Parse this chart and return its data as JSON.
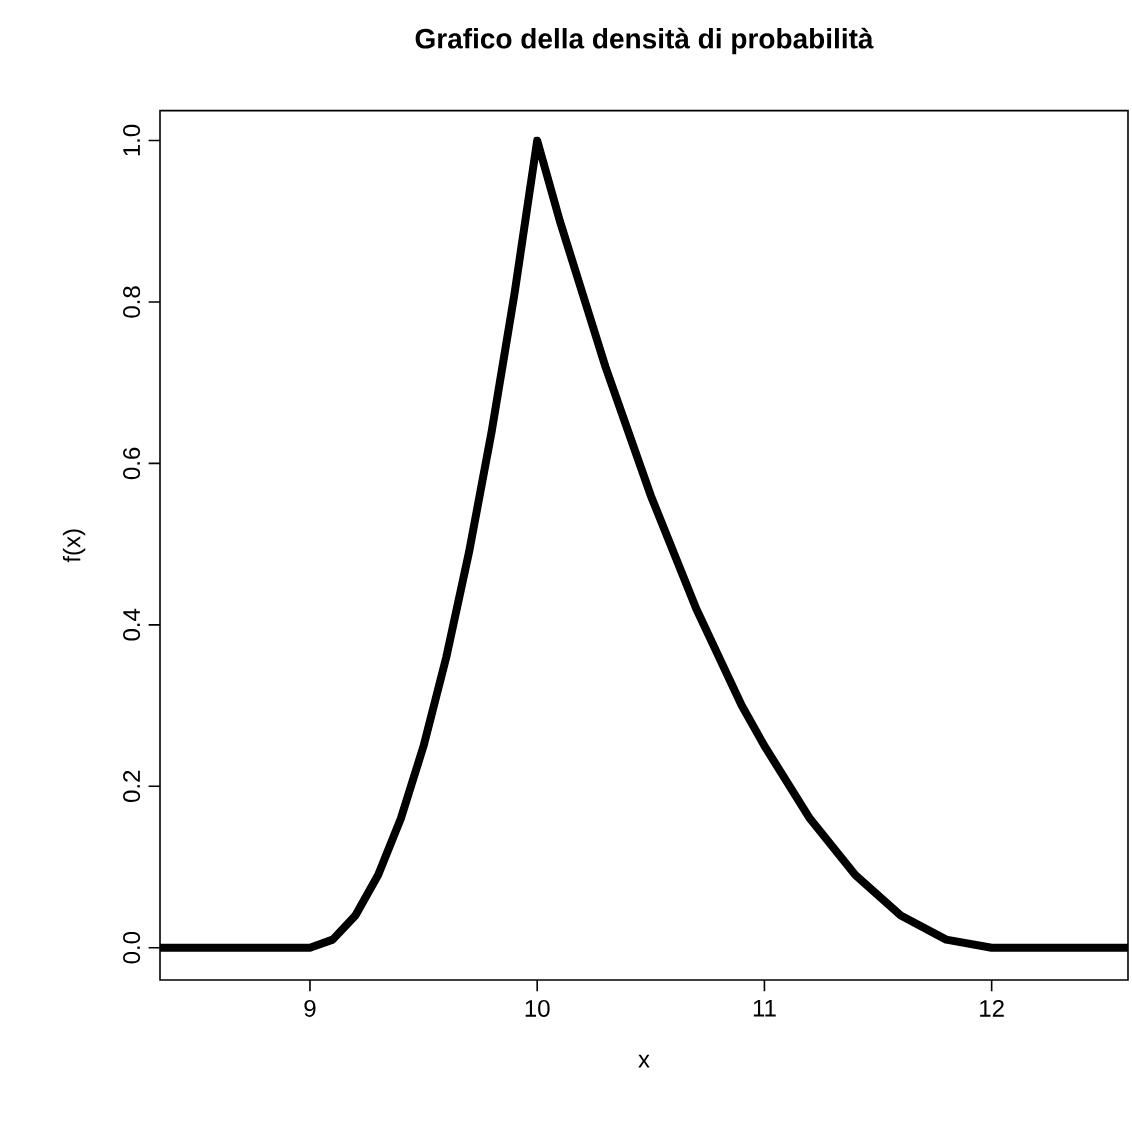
{
  "chart_data": {
    "type": "line",
    "title": "Grafico della densità di probabilità",
    "xlabel": "x",
    "ylabel": "f(x)",
    "x": [
      8.34,
      9.0,
      9.1,
      9.2,
      9.3,
      9.4,
      9.5,
      9.6,
      9.7,
      9.8,
      9.9,
      10.0,
      10.1,
      10.2,
      10.3,
      10.4,
      10.5,
      10.6,
      10.7,
      10.8,
      10.9,
      11.0,
      11.2,
      11.4,
      11.6,
      11.8,
      12.0,
      12.6
    ],
    "series": [
      {
        "color": "#000000",
        "values": [
          0,
          0,
          0.01,
          0.04,
          0.09,
          0.16,
          0.25,
          0.36,
          0.49,
          0.64,
          0.81,
          1.0,
          0.9,
          0.81,
          0.72,
          0.64,
          0.56,
          0.49,
          0.42,
          0.36,
          0.3,
          0.25,
          0.16,
          0.09,
          0.04,
          0.01,
          0,
          0
        ]
      }
    ],
    "xlim": [
      8.34,
      12.6
    ],
    "ylim": [
      -0.04,
      1.037
    ],
    "xticks": [
      9,
      10,
      11,
      12
    ],
    "yticks": [
      {
        "value": 0,
        "label": "0.0"
      },
      0.2,
      0.4,
      0.6,
      0.8,
      {
        "value": 1,
        "label": "1.0"
      }
    ],
    "marker": "none",
    "line_style": "solid"
  }
}
